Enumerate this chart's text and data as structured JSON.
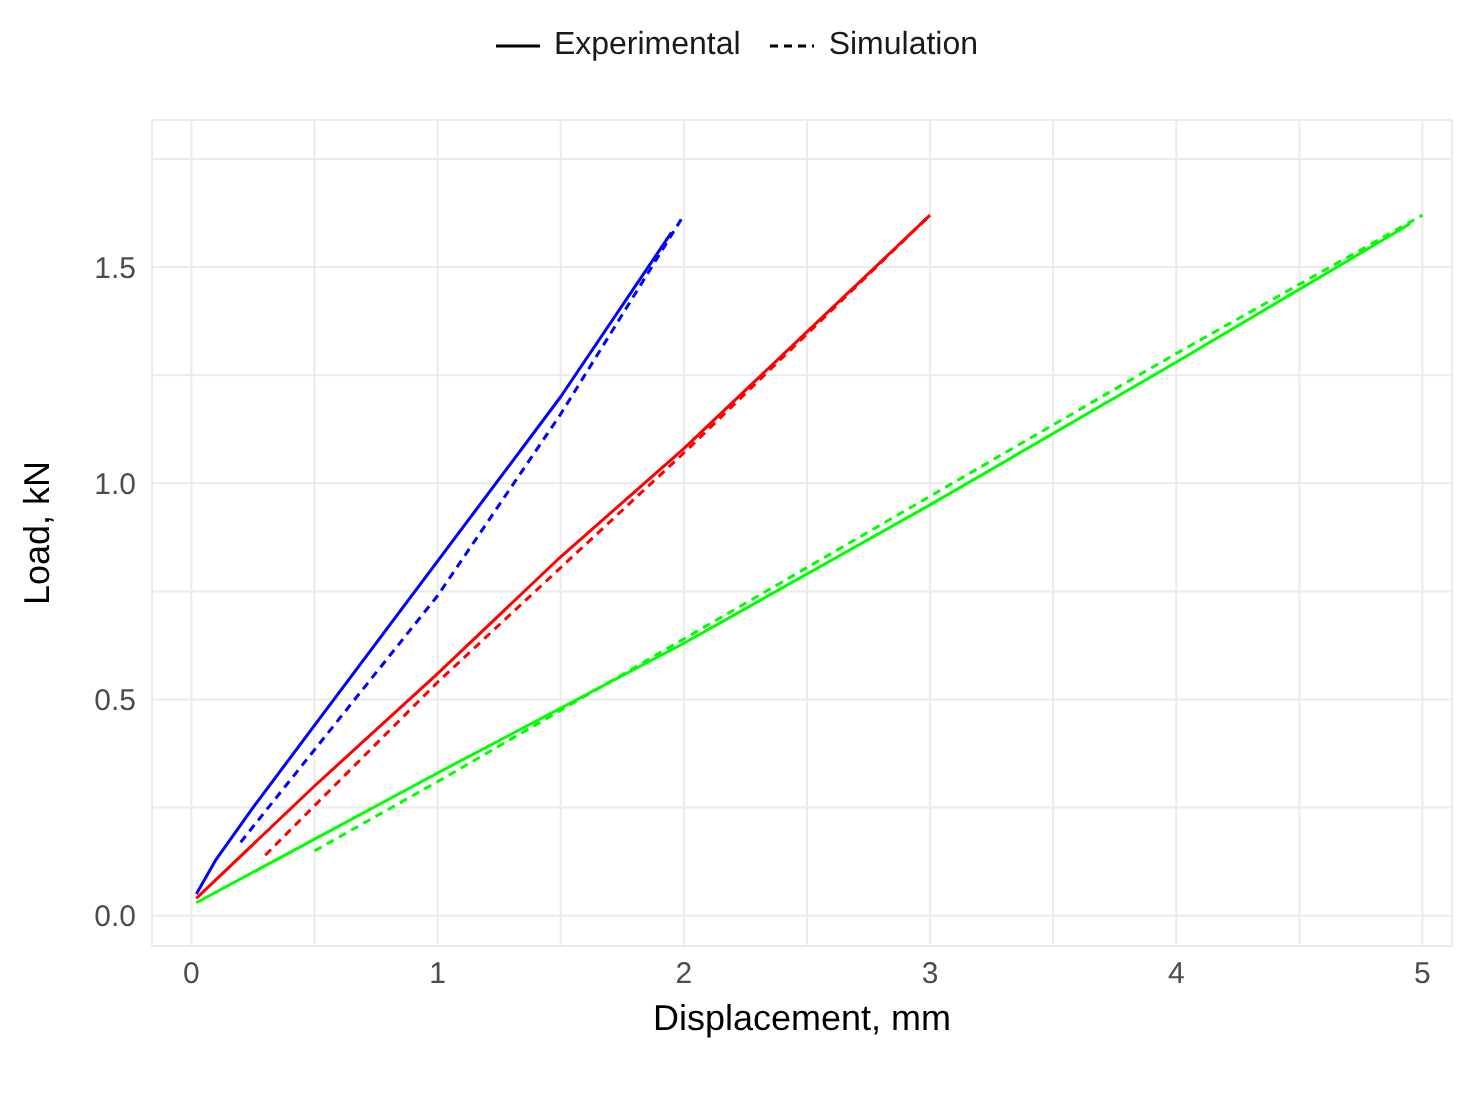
{
  "chart_data": {
    "type": "line",
    "xlabel": "Displacement, mm",
    "ylabel": "Load, kN",
    "xlim": [
      -0.16,
      5.12
    ],
    "ylim": [
      -0.07,
      1.84
    ],
    "xticks": [
      0,
      {
        "value": 0.5,
        "label": null
      },
      1,
      {
        "value": 1.5,
        "label": null
      },
      2,
      {
        "value": 2.5,
        "label": null
      },
      3,
      {
        "value": 3.5,
        "label": null
      },
      4,
      {
        "value": 4.5,
        "label": null
      },
      5
    ],
    "yticks": [
      {
        "value": 0,
        "label": "0.0"
      },
      {
        "value": 0.25,
        "label": null
      },
      {
        "value": 0.5,
        "label": "0.5"
      },
      {
        "value": 0.75,
        "label": null
      },
      {
        "value": 1,
        "label": "1.0"
      },
      {
        "value": 1.25,
        "label": null
      },
      {
        "value": 1.5,
        "label": "1.5"
      },
      {
        "value": 1.75,
        "label": null
      }
    ],
    "grid": true,
    "legend": "top",
    "marker": "none",
    "series": [
      {
        "name": "Experimental",
        "color": "#000000",
        "line_style": "solid"
      },
      {
        "name": "Simulation",
        "color": "#000000",
        "line_style": "dashed"
      },
      {
        "color": "#0000ff",
        "line_style": "solid",
        "x": [
          0.02,
          0.1,
          0.25,
          0.5,
          1,
          1.5,
          1.95
        ],
        "values": [
          0.05,
          0.13,
          0.25,
          0.44,
          0.82,
          1.2,
          1.58
        ]
      },
      {
        "color": "#0000ff",
        "line_style": "dashed",
        "x": [
          0.2,
          1,
          1.5,
          2
        ],
        "values": [
          0.17,
          0.74,
          1.16,
          1.62
        ]
      },
      {
        "color": "#ff0000",
        "line_style": "solid",
        "x": [
          0.02,
          0.5,
          1,
          1.5,
          2,
          2.5,
          3
        ],
        "values": [
          0.04,
          0.3,
          0.56,
          0.83,
          1.08,
          1.35,
          1.62
        ]
      },
      {
        "color": "#ff0000",
        "line_style": "dashed",
        "x": [
          0.3,
          1,
          2,
          3
        ],
        "values": [
          0.14,
          0.54,
          1.07,
          1.62
        ]
      },
      {
        "color": "#00ff00",
        "line_style": "solid",
        "x": [
          0.02,
          1,
          2,
          3,
          4,
          4.95
        ],
        "values": [
          0.03,
          0.33,
          0.63,
          0.95,
          1.28,
          1.6
        ]
      },
      {
        "color": "#00ff00",
        "line_style": "dashed",
        "x": [
          0.5,
          1,
          2,
          3,
          4,
          5
        ],
        "values": [
          0.15,
          0.31,
          0.64,
          0.97,
          1.3,
          1.62
        ]
      }
    ]
  }
}
